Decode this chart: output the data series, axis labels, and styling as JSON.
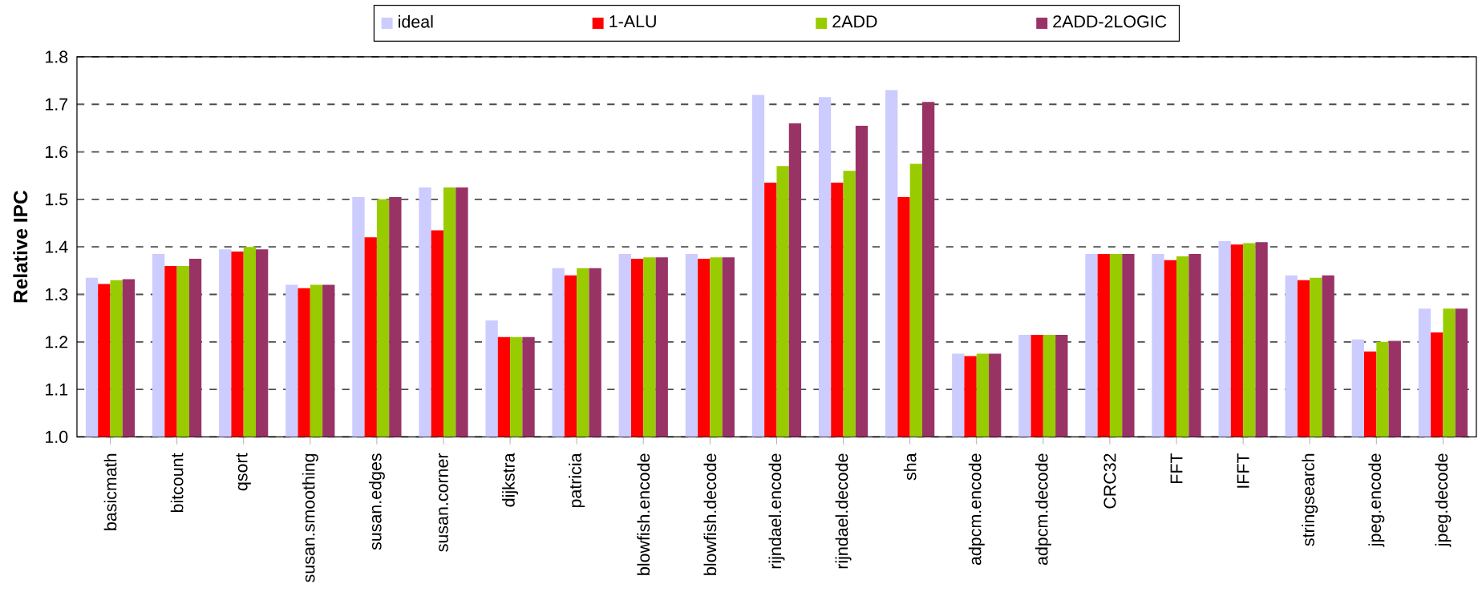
{
  "chart_data": {
    "type": "bar",
    "ylabel": "Relative IPC",
    "categories": [
      "basicmath",
      "bitcount",
      "qsort",
      "susan.smoothing",
      "susan.edges",
      "susan.corner",
      "dijkstra",
      "patricia",
      "blowfish.encode",
      "blowfish.decode",
      "rijndael.encode",
      "rijndael.decode",
      "sha",
      "adpcm.encode",
      "adpcm.decode",
      "CRC32",
      "FFT",
      "IFFT",
      "stringsearch",
      "jpeg.encode",
      "jpeg.decode"
    ],
    "series": [
      {
        "name": "ideal",
        "color": "#ccccff",
        "values": [
          1.335,
          1.385,
          1.395,
          1.32,
          1.505,
          1.525,
          1.245,
          1.355,
          1.385,
          1.385,
          1.72,
          1.715,
          1.73,
          1.175,
          1.215,
          1.385,
          1.385,
          1.412,
          1.34,
          1.205,
          1.27
        ]
      },
      {
        "name": "1-ALU",
        "color": "#ff0000",
        "values": [
          1.322,
          1.36,
          1.39,
          1.313,
          1.42,
          1.435,
          1.21,
          1.34,
          1.375,
          1.375,
          1.535,
          1.535,
          1.505,
          1.17,
          1.215,
          1.385,
          1.372,
          1.405,
          1.33,
          1.18,
          1.22
        ]
      },
      {
        "name": "2ADD",
        "color": "#99cc00",
        "values": [
          1.33,
          1.36,
          1.4,
          1.32,
          1.5,
          1.525,
          1.21,
          1.355,
          1.378,
          1.378,
          1.57,
          1.56,
          1.575,
          1.175,
          1.215,
          1.385,
          1.38,
          1.408,
          1.335,
          1.2,
          1.27
        ]
      },
      {
        "name": "2ADD-2LOGIC",
        "color": "#993366",
        "values": [
          1.332,
          1.375,
          1.395,
          1.32,
          1.505,
          1.525,
          1.21,
          1.355,
          1.378,
          1.378,
          1.66,
          1.655,
          1.705,
          1.175,
          1.215,
          1.385,
          1.385,
          1.41,
          1.34,
          1.202,
          1.27
        ]
      }
    ],
    "ylim": [
      1.0,
      1.8
    ],
    "yticks": [
      {
        "value": 1.0,
        "label": "1.0"
      },
      {
        "value": 1.1,
        "label": "1.1"
      },
      {
        "value": 1.2,
        "label": "1.2"
      },
      {
        "value": 1.3,
        "label": "1.3"
      },
      {
        "value": 1.4,
        "label": "1.4"
      },
      {
        "value": 1.5,
        "label": "1.5"
      },
      {
        "value": 1.6,
        "label": "1.6"
      },
      {
        "value": 1.7,
        "label": "1.7"
      },
      {
        "value": 1.8,
        "label": "1.8"
      }
    ],
    "grid": "y",
    "legend": "top"
  }
}
